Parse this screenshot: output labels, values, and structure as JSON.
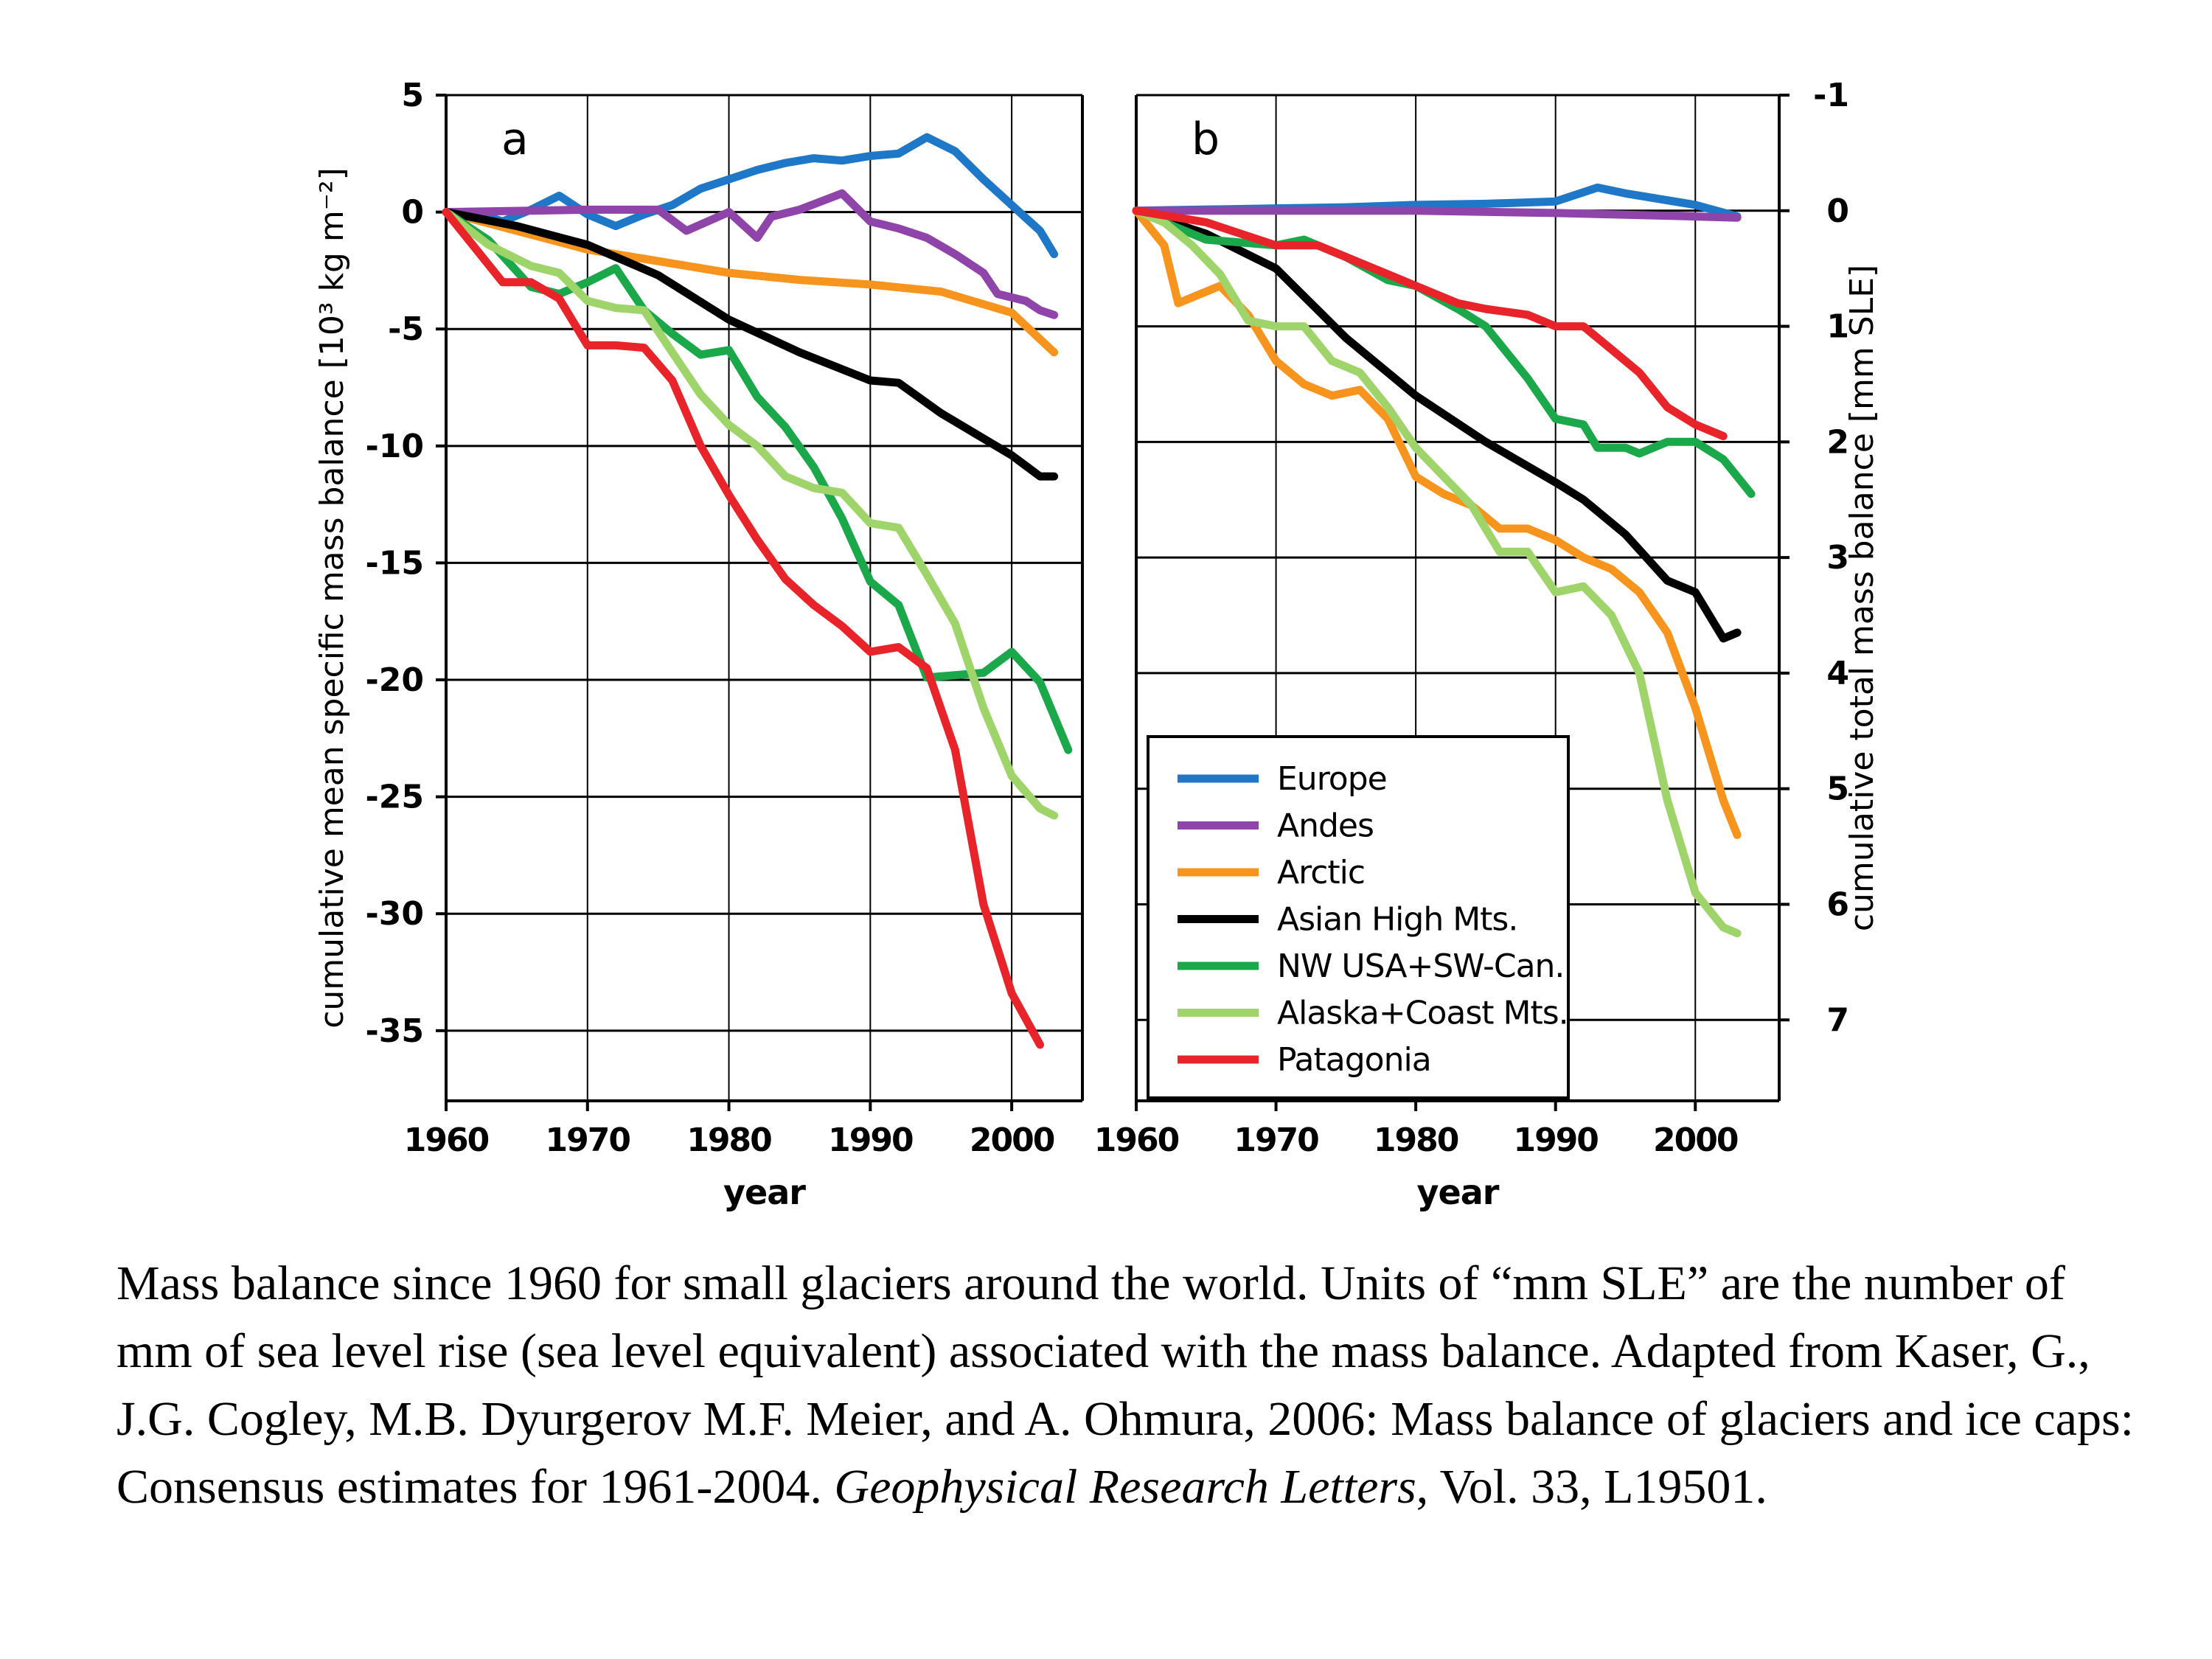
{
  "chart_data": [
    {
      "panel": "a",
      "type": "line",
      "xlabel": "year",
      "ylabel": "cumulative mean specific mass balance [10³ kg m⁻²]",
      "xlim": [
        1960,
        2005
      ],
      "ylim": [
        -38,
        5
      ],
      "xticks": [
        1960,
        1970,
        1980,
        1990,
        2000
      ],
      "yticks": [
        5,
        0,
        -5,
        -10,
        -15,
        -20,
        -25,
        -30,
        -35
      ],
      "grid": true,
      "series": [
        {
          "name": "Europe",
          "color": "#1f77c8",
          "x": [
            1960,
            1962,
            1964,
            1966,
            1968,
            1970,
            1972,
            1974,
            1976,
            1978,
            1980,
            1982,
            1984,
            1986,
            1988,
            1990,
            1992,
            1994,
            1996,
            1998,
            2000,
            2002,
            2003
          ],
          "y": [
            0,
            0,
            -0.4,
            0.1,
            0.7,
            -0.1,
            -0.6,
            -0.1,
            0.3,
            1.0,
            1.4,
            1.8,
            2.1,
            2.3,
            2.2,
            2.4,
            2.5,
            3.2,
            2.6,
            1.4,
            0.3,
            -0.8,
            -1.8
          ]
        },
        {
          "name": "Andes",
          "color": "#8e44a8",
          "x": [
            1960,
            1970,
            1975,
            1977,
            1980,
            1982,
            1983,
            1985,
            1988,
            1990,
            1992,
            1994,
            1996,
            1998,
            1999,
            2001,
            2002,
            2003
          ],
          "y": [
            0,
            0.1,
            0.1,
            -0.8,
            0,
            -1.1,
            -0.2,
            0.1,
            0.8,
            -0.4,
            -0.7,
            -1.1,
            -1.8,
            -2.6,
            -3.5,
            -3.8,
            -4.2,
            -4.4
          ]
        },
        {
          "name": "Arctic",
          "color": "#f7941d",
          "x": [
            1960,
            1965,
            1970,
            1975,
            1980,
            1985,
            1990,
            1995,
            2000,
            2003
          ],
          "y": [
            0,
            -0.8,
            -1.6,
            -2.1,
            -2.6,
            -2.9,
            -3.1,
            -3.4,
            -4.3,
            -6.0
          ]
        },
        {
          "name": "Asian High Mts.",
          "color": "#000000",
          "x": [
            1960,
            1965,
            1970,
            1975,
            1980,
            1985,
            1990,
            1992,
            1995,
            2000,
            2002,
            2003
          ],
          "y": [
            0,
            -0.6,
            -1.4,
            -2.7,
            -4.6,
            -6.0,
            -7.2,
            -7.3,
            -8.6,
            -10.4,
            -11.3,
            -11.3
          ]
        },
        {
          "name": "NW USA+SW-Can.",
          "color": "#1ba84a",
          "x": [
            1960,
            1963,
            1966,
            1968,
            1970,
            1972,
            1974,
            1976,
            1978,
            1980,
            1982,
            1984,
            1986,
            1988,
            1990,
            1992,
            1994,
            1996,
            1998,
            2000,
            2002,
            2004
          ],
          "y": [
            0,
            -1.2,
            -3.2,
            -3.5,
            -3.0,
            -2.4,
            -4.2,
            -5.2,
            -6.1,
            -5.9,
            -7.9,
            -9.2,
            -10.9,
            -13.1,
            -15.8,
            -16.8,
            -19.9,
            -19.8,
            -19.7,
            -18.8,
            -20.1,
            -23.0
          ]
        },
        {
          "name": "Alaska+Coast Mts.",
          "color": "#9fd46b",
          "x": [
            1960,
            1963,
            1966,
            1968,
            1970,
            1972,
            1974,
            1976,
            1978,
            1980,
            1982,
            1984,
            1986,
            1988,
            1990,
            1992,
            1994,
            1996,
            1998,
            2000,
            2002,
            2003
          ],
          "y": [
            0,
            -1.4,
            -2.3,
            -2.6,
            -3.8,
            -4.1,
            -4.2,
            -6.0,
            -7.8,
            -9.1,
            -10.0,
            -11.3,
            -11.8,
            -12.0,
            -13.3,
            -13.5,
            -15.5,
            -17.6,
            -21.2,
            -24.1,
            -25.5,
            -25.8
          ]
        },
        {
          "name": "Patagonia",
          "color": "#e8232a",
          "x": [
            1960,
            1962,
            1964,
            1966,
            1968,
            1970,
            1972,
            1974,
            1976,
            1978,
            1980,
            1982,
            1984,
            1986,
            1988,
            1990,
            1992,
            1994,
            1996,
            1998,
            2000,
            2002
          ],
          "y": [
            0,
            -1.5,
            -3.0,
            -3.0,
            -3.7,
            -5.7,
            -5.7,
            -5.8,
            -7.2,
            -10.0,
            -12.1,
            -14.0,
            -15.7,
            -16.8,
            -17.7,
            -18.8,
            -18.6,
            -19.5,
            -23.0,
            -29.6,
            -33.4,
            -35.6
          ]
        }
      ]
    },
    {
      "panel": "b",
      "type": "line",
      "xlabel": "year",
      "ylabel": "cumulative total mass balance [mm SLE]",
      "xlim": [
        1960,
        2006
      ],
      "ylim": [
        7.7,
        -1
      ],
      "xticks": [
        1960,
        1970,
        1980,
        1990,
        2000
      ],
      "yticks": [
        -1,
        0,
        1,
        2,
        3,
        4,
        5,
        6,
        7
      ],
      "grid": true,
      "legend_position": "bottom-right",
      "series": [
        {
          "name": "Europe",
          "color": "#1f77c8",
          "x": [
            1960,
            1970,
            1975,
            1980,
            1985,
            1990,
            1993,
            1995,
            2000,
            2003
          ],
          "y": [
            0,
            -0.02,
            -0.03,
            -0.05,
            -0.06,
            -0.08,
            -0.2,
            -0.15,
            -0.05,
            0.05
          ]
        },
        {
          "name": "Andes",
          "color": "#8e44a8",
          "x": [
            1960,
            1980,
            1990,
            2000,
            2003
          ],
          "y": [
            0,
            0,
            0.02,
            0.05,
            0.06
          ]
        },
        {
          "name": "Arctic",
          "color": "#f7941d",
          "x": [
            1960,
            1962,
            1963,
            1965,
            1966,
            1968,
            1970,
            1972,
            1974,
            1976,
            1978,
            1980,
            1982,
            1984,
            1986,
            1988,
            1990,
            1992,
            1994,
            1996,
            1998,
            2000,
            2002,
            2003
          ],
          "y": [
            0,
            0.3,
            0.8,
            0.7,
            0.65,
            0.9,
            1.3,
            1.5,
            1.6,
            1.55,
            1.8,
            2.3,
            2.45,
            2.55,
            2.75,
            2.75,
            2.85,
            3.0,
            3.1,
            3.3,
            3.65,
            4.3,
            5.1,
            5.4
          ]
        },
        {
          "name": "Asian High Mts.",
          "color": "#000000",
          "x": [
            1960,
            1965,
            1970,
            1975,
            1980,
            1985,
            1990,
            1992,
            1995,
            1998,
            2000,
            2002,
            2003
          ],
          "y": [
            0,
            0.2,
            0.5,
            1.1,
            1.6,
            2.0,
            2.35,
            2.5,
            2.8,
            3.2,
            3.3,
            3.7,
            3.65
          ]
        },
        {
          "name": "NW USA+SW-Can.",
          "color": "#1ba84a",
          "x": [
            1960,
            1965,
            1970,
            1972,
            1975,
            1978,
            1980,
            1983,
            1985,
            1988,
            1990,
            1992,
            1993,
            1995,
            1996,
            1998,
            2000,
            2002,
            2004
          ],
          "y": [
            0,
            0.25,
            0.3,
            0.25,
            0.4,
            0.6,
            0.65,
            0.85,
            1.0,
            1.45,
            1.8,
            1.85,
            2.05,
            2.05,
            2.1,
            2.0,
            2.0,
            2.15,
            2.45
          ]
        },
        {
          "name": "Alaska+Coast Mts.",
          "color": "#9fd46b",
          "x": [
            1960,
            1962,
            1964,
            1966,
            1968,
            1970,
            1972,
            1974,
            1976,
            1978,
            1980,
            1982,
            1984,
            1986,
            1988,
            1990,
            1992,
            1994,
            1996,
            1998,
            2000,
            2002,
            2003
          ],
          "y": [
            0,
            0.1,
            0.3,
            0.55,
            0.95,
            1.0,
            1.0,
            1.3,
            1.4,
            1.7,
            2.05,
            2.3,
            2.55,
            2.95,
            2.95,
            3.3,
            3.25,
            3.5,
            4.0,
            5.1,
            5.9,
            6.2,
            6.25
          ]
        },
        {
          "name": "Patagonia",
          "color": "#e8232a",
          "x": [
            1960,
            1965,
            1970,
            1973,
            1975,
            1978,
            1980,
            1983,
            1985,
            1988,
            1990,
            1992,
            1994,
            1996,
            1998,
            2000,
            2002
          ],
          "y": [
            0,
            0.1,
            0.3,
            0.3,
            0.4,
            0.55,
            0.65,
            0.8,
            0.85,
            0.9,
            1.0,
            1.0,
            1.2,
            1.4,
            1.7,
            1.85,
            1.95
          ]
        }
      ]
    }
  ],
  "panel_letters": {
    "a": "a",
    "b": "b"
  },
  "legend_title": "",
  "caption": {
    "part1": "Mass balance since 1960 for small glaciers around the world.  Units of “mm SLE” are the number of mm of sea level rise (sea level equivalent) associated with the mass balance.  Adapted from Kaser, G., J.G. Cogley, M.B. Dyurgerov M.F. Meier, and A. Ohmura, 2006:  Mass balance of glaciers and ice caps: Consensus estimates for 1961-2004. ",
    "journal": "Geophysical Research Letters",
    "part2": ", Vol. 33, L19501."
  }
}
